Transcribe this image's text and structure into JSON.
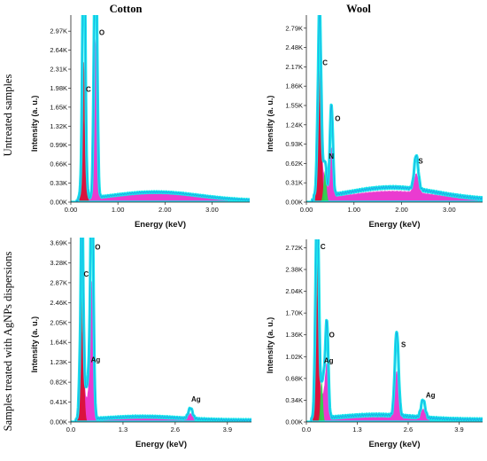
{
  "column_headers": [
    "Cotton",
    "Wool"
  ],
  "row_headers": [
    "Untreated samples",
    "Samples treated with AgNPs dispersions"
  ],
  "colors": {
    "cyan": "#19e6ec",
    "magenta": "#e619c8",
    "red": "#d8102c",
    "green": "#22dd44",
    "blue_outline": "#1f6fe0"
  },
  "chart_data": [
    {
      "type": "area",
      "id": "cotton-untreated",
      "xlabel": "Energy (keV)",
      "ylabel": "Intensity (a. u.)",
      "xlim": [
        0,
        3.8
      ],
      "ylim": [
        0,
        3.25
      ],
      "xticks": [
        0,
        1,
        2,
        3
      ],
      "xtick_labels": [
        "0.00",
        "1.00",
        "2.00",
        "3.00"
      ],
      "yticks": [
        0,
        0.33,
        0.66,
        0.99,
        1.32,
        1.65,
        1.98,
        2.31,
        2.64,
        2.97
      ],
      "ytick_labels": [
        "0.00K",
        "0.33K",
        "0.66K",
        "0.99K",
        "1.32K",
        "1.65K",
        "1.98K",
        "2.31K",
        "2.64K",
        "2.97K"
      ],
      "peaks": [
        {
          "label": "C",
          "x": 0.277,
          "y": 2.45,
          "w": 0.035
        },
        {
          "label": "O",
          "x": 0.525,
          "y": 5.0,
          "w": 0.03
        }
      ],
      "peak_labels": [
        {
          "text": "C",
          "x": 0.32,
          "y": 1.92
        },
        {
          "text": "O",
          "x": 0.6,
          "y": 2.9
        }
      ],
      "cyan_peaks": [
        {
          "x": 0.277,
          "y": 5.0
        }
      ],
      "green_peaks": [],
      "magenta_fill": [
        0.3,
        0.3
      ],
      "noise": 0.02
    },
    {
      "type": "area",
      "id": "wool-untreated",
      "xlabel": "Energy (keV)",
      "ylabel": "Intensity (a. u.)",
      "xlim": [
        0,
        3.7
      ],
      "ylim": [
        0,
        3.0
      ],
      "xticks": [
        0,
        1,
        2,
        3
      ],
      "xtick_labels": [
        "0.00",
        "1.00",
        "2.00",
        "3.00"
      ],
      "yticks": [
        0,
        0.31,
        0.62,
        0.93,
        1.24,
        1.55,
        1.86,
        2.17,
        2.48,
        2.79
      ],
      "ytick_labels": [
        "0.00K",
        "0.31K",
        "0.62K",
        "0.93K",
        "1.24K",
        "1.55K",
        "1.86K",
        "2.17K",
        "2.48K",
        "2.79K"
      ],
      "peaks": [
        {
          "label": "C",
          "x": 0.277,
          "y": 2.8,
          "w": 0.035
        },
        {
          "label": "N",
          "x": 0.392,
          "y": 0.55,
          "w": 0.03
        },
        {
          "label": "O",
          "x": 0.525,
          "y": 1.45,
          "w": 0.03
        },
        {
          "label": "S",
          "x": 2.307,
          "y": 0.55,
          "w": 0.04
        }
      ],
      "peak_labels": [
        {
          "text": "C",
          "x": 0.34,
          "y": 2.2
        },
        {
          "text": "N",
          "x": 0.47,
          "y": 0.7
        },
        {
          "text": "O",
          "x": 0.6,
          "y": 1.3
        },
        {
          "text": "S",
          "x": 2.35,
          "y": 0.62
        }
      ],
      "cyan_peaks": [
        {
          "x": 0.277,
          "y": 3.2
        }
      ],
      "green_peaks": [
        {
          "x": 0.39,
          "y": 0.5
        }
      ],
      "magenta_fill": [
        0.3,
        0.4
      ],
      "noise": 0.03
    },
    {
      "type": "area",
      "id": "cotton-treated",
      "xlabel": "Energy (keV)",
      "ylabel": "Intensity (a. u.)",
      "xlim": [
        0,
        4.5
      ],
      "ylim": [
        0,
        3.8
      ],
      "xticks": [
        0,
        1.3,
        2.6,
        3.9
      ],
      "xtick_labels": [
        "0.0",
        "1.3",
        "2.6",
        "3.9"
      ],
      "yticks": [
        0,
        0.41,
        0.82,
        1.23,
        1.64,
        2.05,
        2.46,
        2.87,
        3.28,
        3.69
      ],
      "ytick_labels": [
        "0.00K",
        "0.41K",
        "0.82K",
        "1.23K",
        "1.64K",
        "2.05K",
        "2.46K",
        "2.87K",
        "3.28K",
        "3.69K"
      ],
      "peaks": [
        {
          "label": "C",
          "x": 0.277,
          "y": 3.3,
          "w": 0.04
        },
        {
          "label": "O",
          "x": 0.525,
          "y": 5.0,
          "w": 0.035
        },
        {
          "label": "Ag",
          "x": 0.43,
          "y": 0.75,
          "w": 0.05
        },
        {
          "label": "Ag",
          "x": 2.98,
          "y": 0.22,
          "w": 0.05
        }
      ],
      "peak_labels": [
        {
          "text": "C",
          "x": 0.32,
          "y": 3.0
        },
        {
          "text": "O",
          "x": 0.6,
          "y": 3.55
        },
        {
          "text": "Ag",
          "x": 0.5,
          "y": 1.23
        },
        {
          "text": "Ag",
          "x": 3.0,
          "y": 0.42
        }
      ],
      "cyan_peaks": [
        {
          "x": 0.277,
          "y": 5.0
        }
      ],
      "green_peaks": [],
      "magenta_fill": [
        0.12,
        0.15
      ],
      "noise": 0.03
    },
    {
      "type": "area",
      "id": "wool-treated",
      "xlabel": "Energy (keV)",
      "ylabel": "Intensity (a. u.)",
      "xlim": [
        0,
        4.5
      ],
      "ylim": [
        0,
        2.85
      ],
      "xticks": [
        0,
        1.3,
        2.6,
        3.9
      ],
      "xtick_labels": [
        "0.0",
        "1.3",
        "2.6",
        "3.9"
      ],
      "yticks": [
        0,
        0.34,
        0.68,
        1.02,
        1.36,
        1.7,
        2.04,
        2.38,
        2.72
      ],
      "ytick_labels": [
        "0.00K",
        "0.34K",
        "0.68K",
        "1.02K",
        "1.36K",
        "1.70K",
        "2.04K",
        "2.38K",
        "2.72K"
      ],
      "peaks": [
        {
          "label": "C",
          "x": 0.277,
          "y": 3.5,
          "w": 0.04
        },
        {
          "label": "O",
          "x": 0.525,
          "y": 1.4,
          "w": 0.035
        },
        {
          "label": "Ag",
          "x": 0.43,
          "y": 0.62,
          "w": 0.05
        },
        {
          "label": "S",
          "x": 2.307,
          "y": 1.32,
          "w": 0.045
        },
        {
          "label": "Ag",
          "x": 2.98,
          "y": 0.28,
          "w": 0.05
        }
      ],
      "peak_labels": [
        {
          "text": "C",
          "x": 0.36,
          "y": 2.7
        },
        {
          "text": "O",
          "x": 0.58,
          "y": 1.32
        },
        {
          "text": "Ag",
          "x": 0.45,
          "y": 0.92
        },
        {
          "text": "S",
          "x": 2.42,
          "y": 1.17
        },
        {
          "text": "Ag",
          "x": 3.05,
          "y": 0.38
        }
      ],
      "cyan_peaks": [],
      "green_peaks": [
        {
          "x": 0.39,
          "y": 0.65
        }
      ],
      "magenta_fill": [
        0.1,
        0.15
      ],
      "noise": 0.03
    }
  ]
}
